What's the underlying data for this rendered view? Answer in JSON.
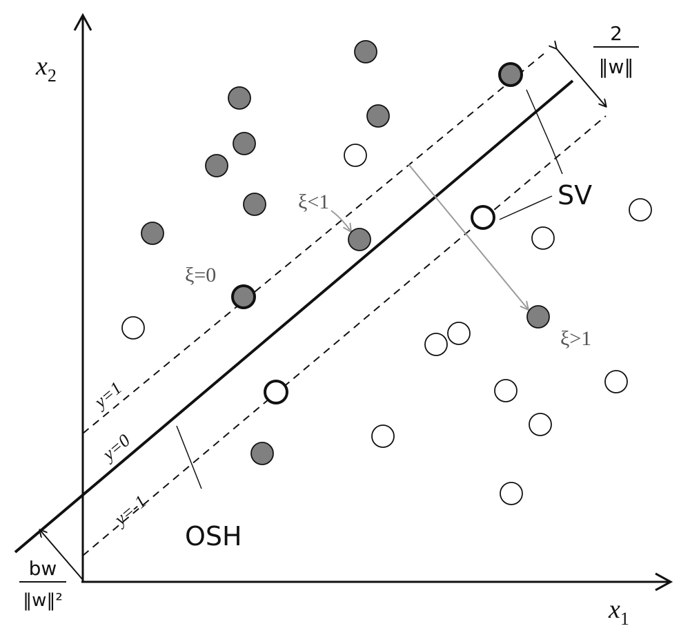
{
  "axes": {
    "x_label": "x",
    "x_subscript": "1",
    "y_label": "x",
    "y_subscript": "2"
  },
  "lines": {
    "upper_margin_label": "y=1",
    "hyperplane_label": "y=0",
    "lower_margin_label": "y=-1"
  },
  "annotations": {
    "margin_width_numerator": "2",
    "margin_width_denominator": "‖w‖",
    "support_vectors": "SV",
    "osh": "OSH",
    "offset_numerator": "bw",
    "offset_denominator": "‖w‖²",
    "xi_zero": "ξ=0",
    "xi_less_one": "ξ<1",
    "xi_greater_one": "ξ>1"
  },
  "colors": {
    "filled_point": "#808080",
    "open_point": "#ffffff",
    "stroke": "#111111",
    "arrow_gray": "#9a9a9a"
  },
  "points": {
    "filled": [
      {
        "x1": 530,
        "x2": 75
      },
      {
        "x1": 740,
        "x2": 108,
        "support_vector": true
      },
      {
        "x1": 347,
        "x2": 142
      },
      {
        "x1": 548,
        "x2": 168
      },
      {
        "x1": 354,
        "x2": 208
      },
      {
        "x1": 314,
        "x2": 240
      },
      {
        "x1": 369,
        "x2": 296
      },
      {
        "x1": 221,
        "x2": 338
      },
      {
        "x1": 521,
        "x2": 347
      },
      {
        "x1": 353,
        "x2": 430,
        "support_vector": true
      },
      {
        "x1": 780,
        "x2": 459
      },
      {
        "x1": 380,
        "x2": 657
      }
    ],
    "open": [
      {
        "x1": 515,
        "x2": 225
      },
      {
        "x1": 928,
        "x2": 304
      },
      {
        "x1": 700,
        "x2": 315,
        "support_vector": true
      },
      {
        "x1": 787,
        "x2": 345
      },
      {
        "x1": 193,
        "x2": 475
      },
      {
        "x1": 665,
        "x2": 483
      },
      {
        "x1": 632,
        "x2": 499
      },
      {
        "x1": 893,
        "x2": 553
      },
      {
        "x1": 733,
        "x2": 566
      },
      {
        "x1": 400,
        "x2": 568,
        "support_vector": true
      },
      {
        "x1": 783,
        "x2": 615
      },
      {
        "x1": 555,
        "x2": 632
      },
      {
        "x1": 741,
        "x2": 715
      }
    ]
  }
}
